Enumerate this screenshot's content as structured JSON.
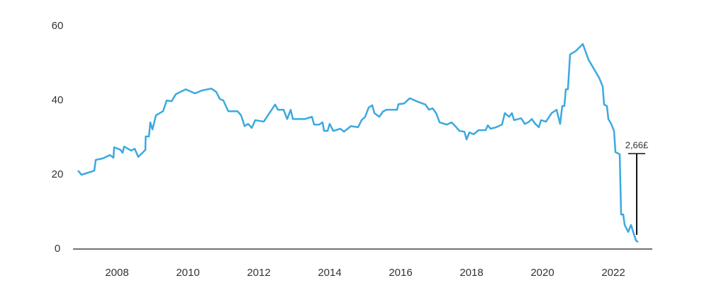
{
  "chart_data": {
    "type": "line",
    "x": [
      2006.9,
      2007.0,
      2007.2,
      2007.36,
      2007.4,
      2007.6,
      2007.8,
      2007.9,
      2007.92,
      2008.1,
      2008.16,
      2008.2,
      2008.4,
      2008.5,
      2008.6,
      2008.8,
      2008.81,
      2008.9,
      2008.94,
      2009.0,
      2009.1,
      2009.3,
      2009.4,
      2009.54,
      2009.66,
      2009.94,
      2010.2,
      2010.4,
      2010.66,
      2010.8,
      2010.9,
      2011.0,
      2011.14,
      2011.4,
      2011.5,
      2011.6,
      2011.7,
      2011.8,
      2011.9,
      2012.14,
      2012.3,
      2012.46,
      2012.54,
      2012.7,
      2012.8,
      2012.9,
      2012.96,
      2013.3,
      2013.5,
      2013.56,
      2013.7,
      2013.8,
      2013.84,
      2013.94,
      2014.0,
      2014.1,
      2014.3,
      2014.4,
      2014.6,
      2014.8,
      2014.9,
      2015.0,
      2015.1,
      2015.2,
      2015.26,
      2015.4,
      2015.5,
      2015.6,
      2015.9,
      2015.94,
      2016.1,
      2016.26,
      2016.5,
      2016.7,
      2016.8,
      2016.9,
      2017.0,
      2017.1,
      2017.3,
      2017.44,
      2017.54,
      2017.66,
      2017.8,
      2017.86,
      2017.94,
      2018.06,
      2018.2,
      2018.4,
      2018.46,
      2018.54,
      2018.7,
      2018.86,
      2018.94,
      2019.06,
      2019.14,
      2019.2,
      2019.4,
      2019.5,
      2019.6,
      2019.7,
      2019.8,
      2019.9,
      2019.96,
      2020.1,
      2020.26,
      2020.4,
      2020.5,
      2020.56,
      2020.62,
      2020.66,
      2020.72,
      2020.78,
      2020.94,
      2021.14,
      2021.3,
      2021.6,
      2021.7,
      2021.74,
      2021.82,
      2021.86,
      2021.94,
      2022.02,
      2022.06,
      2022.18,
      2022.22,
      2022.28,
      2022.32,
      2022.42,
      2022.5,
      2022.56,
      2022.64,
      2022.7
    ],
    "series": [
      {
        "color": "#3ba9e0",
        "values": [
          21.1,
          20,
          20.6,
          21.1,
          24,
          24.4,
          25.3,
          24.6,
          27.4,
          26.7,
          25.9,
          27.6,
          26.5,
          27,
          24.8,
          26.7,
          30.3,
          30.3,
          34.1,
          32.2,
          36,
          37.1,
          40,
          39.8,
          41.7,
          43,
          41.9,
          42.7,
          43.2,
          42.3,
          40.4,
          40,
          37.1,
          37.1,
          36,
          33.1,
          33.7,
          32.6,
          34.7,
          34.3,
          36.6,
          38.9,
          37.5,
          37.5,
          35,
          37.5,
          35,
          35,
          35.6,
          33.5,
          33.5,
          34.1,
          31.8,
          31.8,
          33.7,
          31.8,
          32.4,
          31.6,
          33.1,
          32.8,
          34.7,
          35.6,
          38.1,
          38.7,
          36.6,
          35.6,
          37,
          37.5,
          37.5,
          39,
          39.2,
          40.6,
          39.6,
          38.9,
          37.5,
          37.9,
          36.6,
          34.1,
          33.5,
          34.1,
          33.1,
          31.8,
          31.6,
          29.5,
          31.4,
          30.9,
          32,
          32,
          33.3,
          32.4,
          32.8,
          33.5,
          36.6,
          35.6,
          36.6,
          34.7,
          35.2,
          33.7,
          34.1,
          35,
          33.7,
          32.8,
          34.7,
          34.3,
          36.6,
          37.5,
          33.7,
          38.5,
          38.5,
          43,
          43,
          52.4,
          53.3,
          55.2,
          51,
          46.1,
          43.8,
          38.9,
          38.5,
          35,
          33.7,
          31.8,
          26.1,
          25.5,
          9.3,
          9.3,
          6.5,
          4.6,
          6.5,
          4.6,
          2.3,
          1.9
        ]
      }
    ],
    "xlim": [
      2006.76,
      2023.1
    ],
    "xticks": [
      2008,
      2010,
      2012,
      2014,
      2016,
      2018,
      2020,
      2022
    ],
    "ylim": [
      0,
      60
    ],
    "yticks": [
      0,
      20,
      40,
      60
    ],
    "grid": false,
    "annotation": {
      "text": "2,66£",
      "x": 2022.66,
      "y": 25.7,
      "y_end": 3.8
    }
  }
}
